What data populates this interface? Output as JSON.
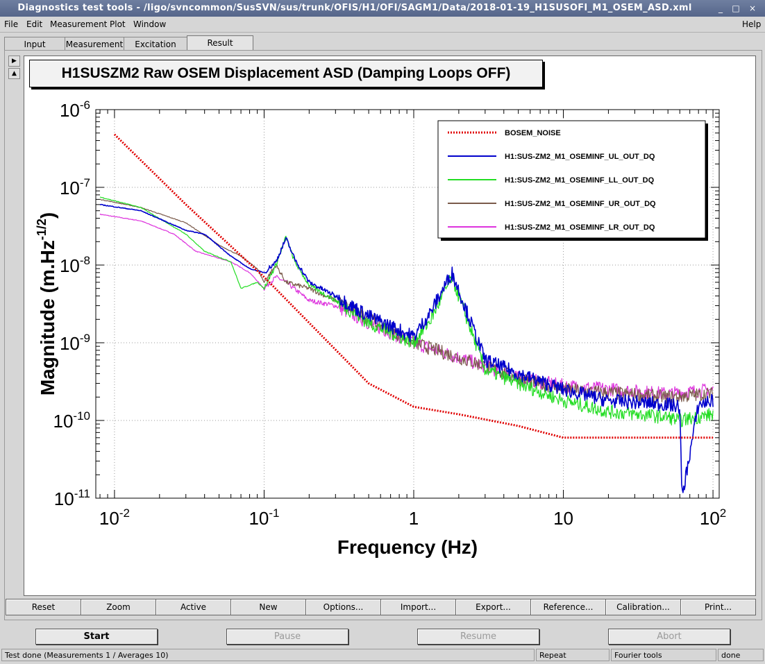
{
  "window": {
    "title": "Diagnostics test tools - /ligo/svncommon/SusSVN/sus/trunk/OFIS/H1/OFI/SAGM1/Data/2018-01-19_H1SUSOFI_M1_OSEM_ASD.xml",
    "controls": [
      "_",
      "□",
      "×"
    ]
  },
  "menubar": {
    "items": [
      "File",
      "Edit",
      "Measurement",
      "Plot",
      "Window"
    ],
    "help": "Help"
  },
  "tabs": [
    "Input",
    "Measurement",
    "Excitation",
    "Result"
  ],
  "active_tab": "Result",
  "plot_title": "H1SUSZM2 Raw OSEM Displacement ASD (Damping Loops OFF)",
  "chart_data": {
    "type": "line",
    "title": "H1SUSZM2 Raw OSEM Displacement ASD (Damping Loops OFF)",
    "xlabel": "Frequency (Hz)",
    "ylabel": "Magnitude (m.Hz^-1/2)",
    "x_scale": "log",
    "y_scale": "log",
    "xlim": [
      0.0075,
      110
    ],
    "ylim": [
      1e-11,
      1e-06
    ],
    "x_ticks": [
      0.01,
      0.1,
      1,
      10,
      100
    ],
    "x_tick_labels": [
      {
        "base": "10",
        "exp": "-2"
      },
      {
        "base": "10",
        "exp": "-1"
      },
      {
        "base": "1",
        "exp": ""
      },
      {
        "base": "10",
        "exp": ""
      },
      {
        "base": "10",
        "exp": "2"
      }
    ],
    "y_ticks": [
      1e-11,
      1e-10,
      1e-09,
      1e-08,
      1e-07,
      1e-06
    ],
    "y_tick_labels": [
      {
        "base": "10",
        "exp": "-11"
      },
      {
        "base": "10",
        "exp": "-10"
      },
      {
        "base": "10",
        "exp": "-9"
      },
      {
        "base": "10",
        "exp": "-8"
      },
      {
        "base": "10",
        "exp": "-7"
      },
      {
        "base": "10",
        "exp": "-6"
      }
    ],
    "grid": true,
    "legend_position": "top-right",
    "series": [
      {
        "name": "BOSEM_NOISE",
        "color": "#e00000",
        "style": "dotted",
        "x": [
          0.01,
          0.03,
          0.1,
          0.5,
          1,
          2,
          5,
          10,
          20,
          50,
          100
        ],
        "y": [
          4.8e-07,
          6e-08,
          7e-09,
          3e-10,
          1.5e-10,
          1.2e-10,
          8.5e-11,
          6e-11,
          6e-11,
          6e-11,
          6e-11
        ]
      },
      {
        "name": "H1:SUS-ZM2_M1_OSEMINF_UL_OUT_DQ",
        "color": "#0000cc",
        "style": "solid",
        "x": [
          0.008,
          0.015,
          0.03,
          0.04,
          0.06,
          0.08,
          0.1,
          0.12,
          0.14,
          0.16,
          0.2,
          0.3,
          0.5,
          1,
          1.3,
          1.8,
          3,
          5,
          10,
          20,
          50,
          60,
          62,
          80,
          100
        ],
        "y": [
          6e-08,
          5e-08,
          2.8e-08,
          2.5e-08,
          1.3e-08,
          9e-09,
          8e-09,
          1.1e-08,
          2.2e-08,
          1.2e-08,
          6e-09,
          4e-09,
          2.2e-09,
          1.2e-09,
          2.5e-09,
          8e-09,
          6e-10,
          4e-10,
          2.5e-10,
          1.8e-10,
          1.6e-10,
          1.5e-10,
          1e-11,
          1.6e-10,
          1.8e-10
        ]
      },
      {
        "name": "H1:SUS-ZM2_M1_OSEMINF_LL_OUT_DQ",
        "color": "#22dd22",
        "style": "solid",
        "x": [
          0.008,
          0.015,
          0.03,
          0.04,
          0.06,
          0.07,
          0.09,
          0.1,
          0.12,
          0.14,
          0.16,
          0.2,
          0.3,
          0.5,
          1,
          1.3,
          1.8,
          3,
          5,
          10,
          20,
          50,
          60,
          100
        ],
        "y": [
          7.5e-08,
          5.5e-08,
          2.5e-08,
          1.5e-08,
          1.1e-08,
          5e-09,
          6e-09,
          5e-09,
          1e-08,
          2.3e-08,
          1.1e-08,
          5.5e-09,
          3.5e-09,
          1.8e-09,
          1e-09,
          2e-09,
          7e-09,
          4.5e-10,
          3e-10,
          1.8e-10,
          1.3e-10,
          1.1e-10,
          1e-10,
          1.2e-10
        ]
      },
      {
        "name": "H1:SUS-ZM2_M1_OSEMINF_UR_OUT_DQ",
        "color": "#7a5a4a",
        "style": "solid",
        "x": [
          0.008,
          0.015,
          0.03,
          0.05,
          0.07,
          0.09,
          0.1,
          0.12,
          0.14,
          0.2,
          0.3,
          0.5,
          1,
          3,
          5,
          10,
          50,
          100
        ],
        "y": [
          7e-08,
          5.5e-08,
          3.5e-08,
          1.8e-08,
          1.3e-08,
          9e-09,
          6e-09,
          1e-08,
          6e-09,
          5e-09,
          3.5e-09,
          2e-09,
          1e-09,
          5e-10,
          3.5e-10,
          2.5e-10,
          2e-10,
          2.2e-10
        ]
      },
      {
        "name": "H1:SUS-ZM2_M1_OSEMINF_LR_OUT_DQ",
        "color": "#dd33dd",
        "style": "solid",
        "x": [
          0.008,
          0.015,
          0.025,
          0.035,
          0.06,
          0.08,
          0.1,
          0.12,
          0.14,
          0.2,
          0.3,
          0.5,
          1,
          3,
          5,
          10,
          50,
          100
        ],
        "y": [
          4.5e-08,
          3.7e-08,
          2.5e-08,
          1.5e-08,
          1.1e-08,
          8e-09,
          5e-09,
          7e-09,
          6e-09,
          3.5e-09,
          3e-09,
          1.8e-09,
          1e-09,
          5e-10,
          3.5e-10,
          2.8e-10,
          2.2e-10,
          2.5e-10
        ]
      }
    ]
  },
  "plot_controls": [
    "Reset",
    "Zoom",
    "Active",
    "New",
    "Options...",
    "Import...",
    "Export...",
    "Reference...",
    "Calibration...",
    "Print..."
  ],
  "run_buttons": {
    "start": "Start",
    "pause": "Pause",
    "resume": "Resume",
    "abort": "Abort"
  },
  "statusbar": {
    "message": "Test done (Measurements 1 / Averages 10)",
    "repeat": "Repeat",
    "tool": "Fourier tools",
    "state": "done"
  }
}
